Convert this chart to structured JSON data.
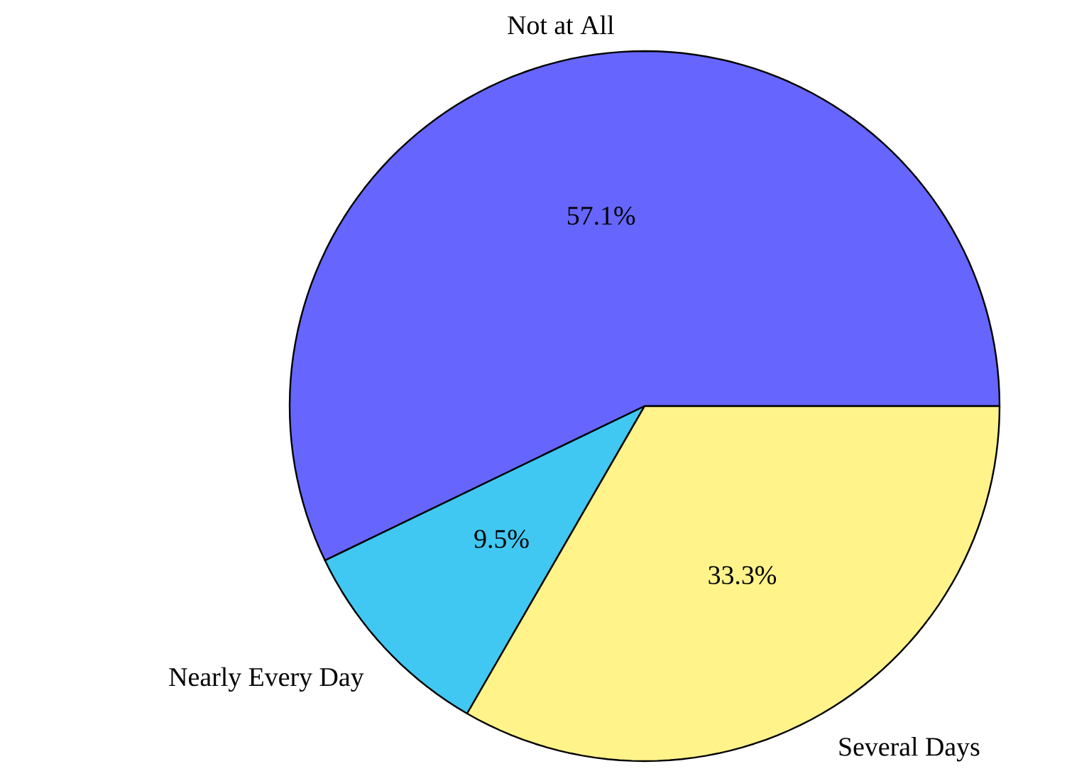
{
  "chart_data": {
    "type": "pie",
    "categories": [
      "Not at All",
      "Nearly Every Day",
      "Several Days"
    ],
    "values": [
      57.1,
      9.5,
      33.3
    ],
    "colors": [
      "#6666ff",
      "#40c8f2",
      "#fff38a"
    ],
    "value_labels": [
      "57.1%",
      "9.5%",
      "33.3%"
    ]
  }
}
